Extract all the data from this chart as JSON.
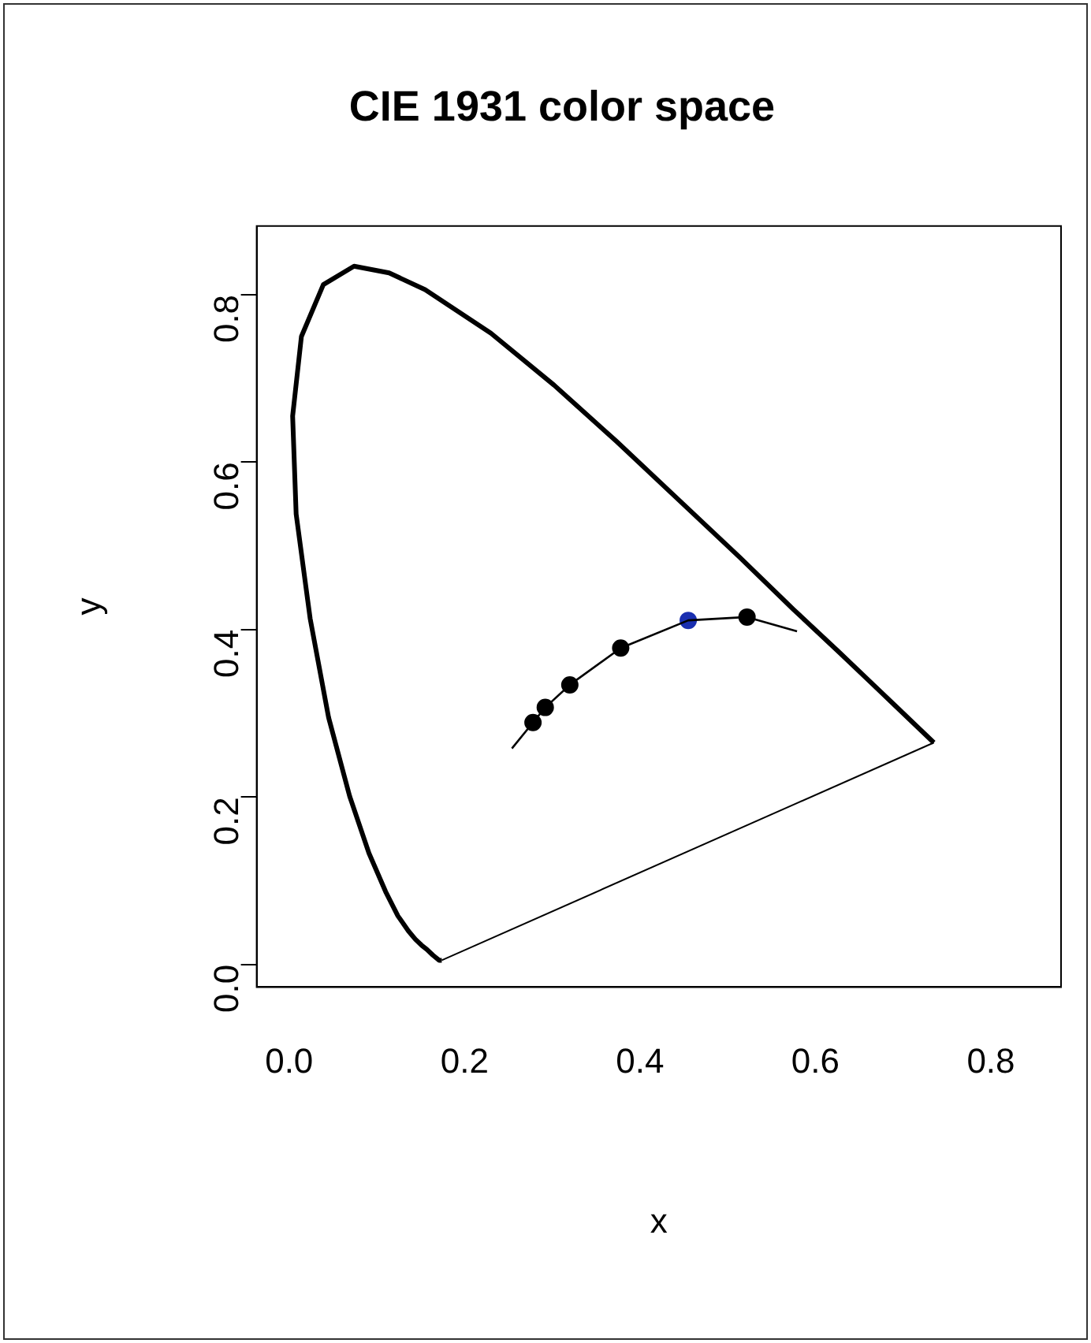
{
  "chart_data": {
    "type": "line",
    "title": "CIE 1931 color space",
    "xlabel": "x",
    "ylabel": "y",
    "xlim": [
      -0.037,
      0.88
    ],
    "ylim": [
      -0.027,
      0.882
    ],
    "xticks": [
      {
        "value": 0,
        "label": "0.0"
      },
      0.2,
      0.4,
      0.6,
      0.8
    ],
    "yticks": [
      {
        "value": 0,
        "label": "0.0"
      },
      0.2,
      0.4,
      0.6,
      0.8
    ],
    "grid": false,
    "legend": false,
    "series": [
      {
        "type": "line",
        "color": "#000000",
        "marker": "none",
        "x": [
          0.174,
          0.171,
          0.164,
          0.157,
          0.151,
          0.144,
          0.136,
          0.124,
          0.11,
          0.091,
          0.069,
          0.045,
          0.024,
          0.008,
          0.004,
          0.014,
          0.039,
          0.074,
          0.114,
          0.155,
          0.23,
          0.302,
          0.373,
          0.444,
          0.513,
          0.575,
          0.627,
          0.666,
          0.692,
          0.719,
          0.735
        ],
        "values": [
          0.005,
          0.005,
          0.011,
          0.018,
          0.023,
          0.03,
          0.04,
          0.058,
          0.087,
          0.133,
          0.201,
          0.295,
          0.413,
          0.538,
          0.655,
          0.75,
          0.812,
          0.834,
          0.826,
          0.806,
          0.754,
          0.692,
          0.625,
          0.555,
          0.487,
          0.424,
          0.373,
          0.334,
          0.308,
          0.281,
          0.265
        ]
      },
      {
        "type": "line",
        "color": "#000000",
        "marker": "none",
        "x": [
          0.735,
          0.174
        ],
        "values": [
          0.265,
          0.005
        ]
      },
      {
        "type": "line",
        "color": "#000000",
        "marker": "none",
        "x": [
          0.254,
          0.278,
          0.292,
          0.32,
          0.378,
          0.455,
          0.522,
          0.579
        ],
        "values": [
          0.258,
          0.289,
          0.307,
          0.334,
          0.378,
          0.411,
          0.415,
          0.398
        ]
      },
      {
        "type": "scatter",
        "color": "#000000",
        "marker": "circle",
        "x": [
          0.278,
          0.292,
          0.32,
          0.378,
          0.522
        ],
        "values": [
          0.289,
          0.307,
          0.334,
          0.378,
          0.415
        ]
      },
      {
        "type": "scatter",
        "color": "#1a2fb0",
        "marker": "circle",
        "x": [
          0.455
        ],
        "values": [
          0.411
        ]
      }
    ]
  }
}
